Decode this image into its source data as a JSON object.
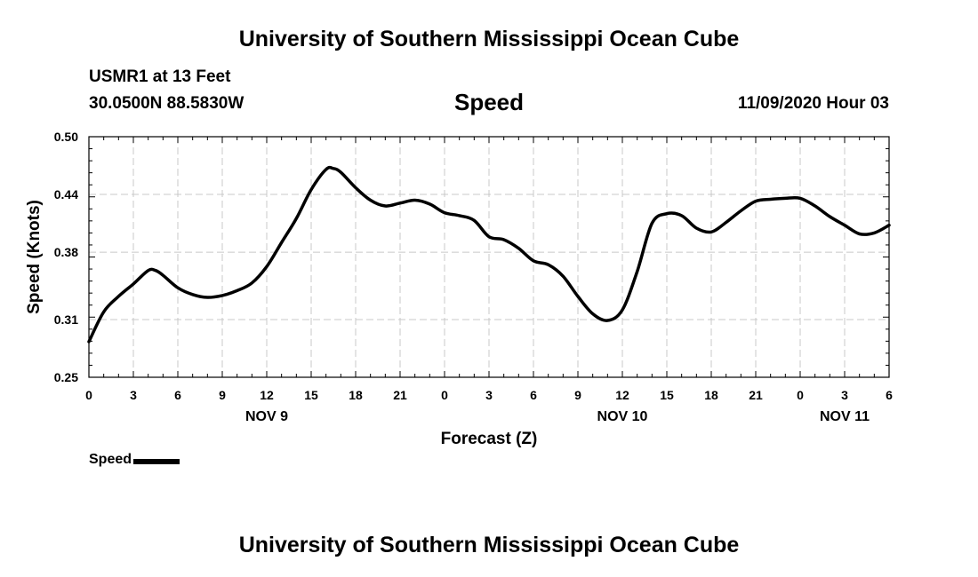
{
  "header": {
    "title": "University of Southern Mississippi Ocean Cube",
    "station": "USMR1 at 13 Feet",
    "coordinates": "30.0500N 88.5830W",
    "variable": "Speed",
    "datetime": "11/09/2020 Hour 03"
  },
  "footer": {
    "title": "University of Southern Mississippi Ocean Cube"
  },
  "legend": {
    "label": "Speed",
    "color": "#000000"
  },
  "chart_data": {
    "type": "line",
    "xlabel": "Forecast (Z)",
    "ylabel": "Speed (Knots)",
    "xlim": [
      0,
      54
    ],
    "ylim": [
      0.25,
      0.5
    ],
    "y_ticks": [
      "0.50",
      "0.44",
      "0.38",
      "0.31",
      "0.25"
    ],
    "y_tick_values": [
      0.5,
      0.44,
      0.38,
      0.31,
      0.25
    ],
    "x_tick_values": [
      0,
      3,
      6,
      9,
      12,
      15,
      18,
      21,
      24,
      27,
      30,
      33,
      36,
      39,
      42,
      45,
      48,
      51,
      54
    ],
    "x_tick_labels": [
      "0",
      "3",
      "6",
      "9",
      "12",
      "15",
      "18",
      "21",
      "0",
      "3",
      "6",
      "9",
      "12",
      "15",
      "18",
      "21",
      "0",
      "3",
      "6"
    ],
    "day_labels": [
      {
        "at": 12,
        "label": "NOV 9"
      },
      {
        "at": 36,
        "label": "NOV 10"
      },
      {
        "at": 51,
        "label": "NOV 11"
      }
    ],
    "grid": true,
    "series": [
      {
        "name": "Speed",
        "color": "#000000",
        "x": [
          0,
          1,
          2,
          3,
          4,
          4.5,
          5,
          6,
          7,
          8,
          9,
          10,
          11,
          12,
          13,
          14,
          15,
          16,
          16.5,
          17,
          18,
          19,
          20,
          21,
          22,
          23,
          24,
          25,
          26,
          27,
          28,
          29,
          30,
          31,
          32,
          33,
          34,
          35,
          36,
          37,
          38,
          39,
          40,
          41,
          42,
          43,
          44,
          45,
          46,
          47,
          48,
          49,
          50,
          51,
          52,
          53,
          54
        ],
        "y": [
          0.287,
          0.318,
          0.334,
          0.347,
          0.361,
          0.361,
          0.356,
          0.343,
          0.336,
          0.333,
          0.335,
          0.34,
          0.348,
          0.365,
          0.39,
          0.415,
          0.445,
          0.466,
          0.467,
          0.463,
          0.447,
          0.434,
          0.428,
          0.431,
          0.434,
          0.43,
          0.421,
          0.418,
          0.413,
          0.396,
          0.393,
          0.384,
          0.371,
          0.367,
          0.355,
          0.334,
          0.316,
          0.309,
          0.32,
          0.36,
          0.41,
          0.42,
          0.418,
          0.405,
          0.401,
          0.411,
          0.423,
          0.433,
          0.435,
          0.436,
          0.436,
          0.428,
          0.417,
          0.408,
          0.399,
          0.4,
          0.408
        ]
      }
    ]
  }
}
